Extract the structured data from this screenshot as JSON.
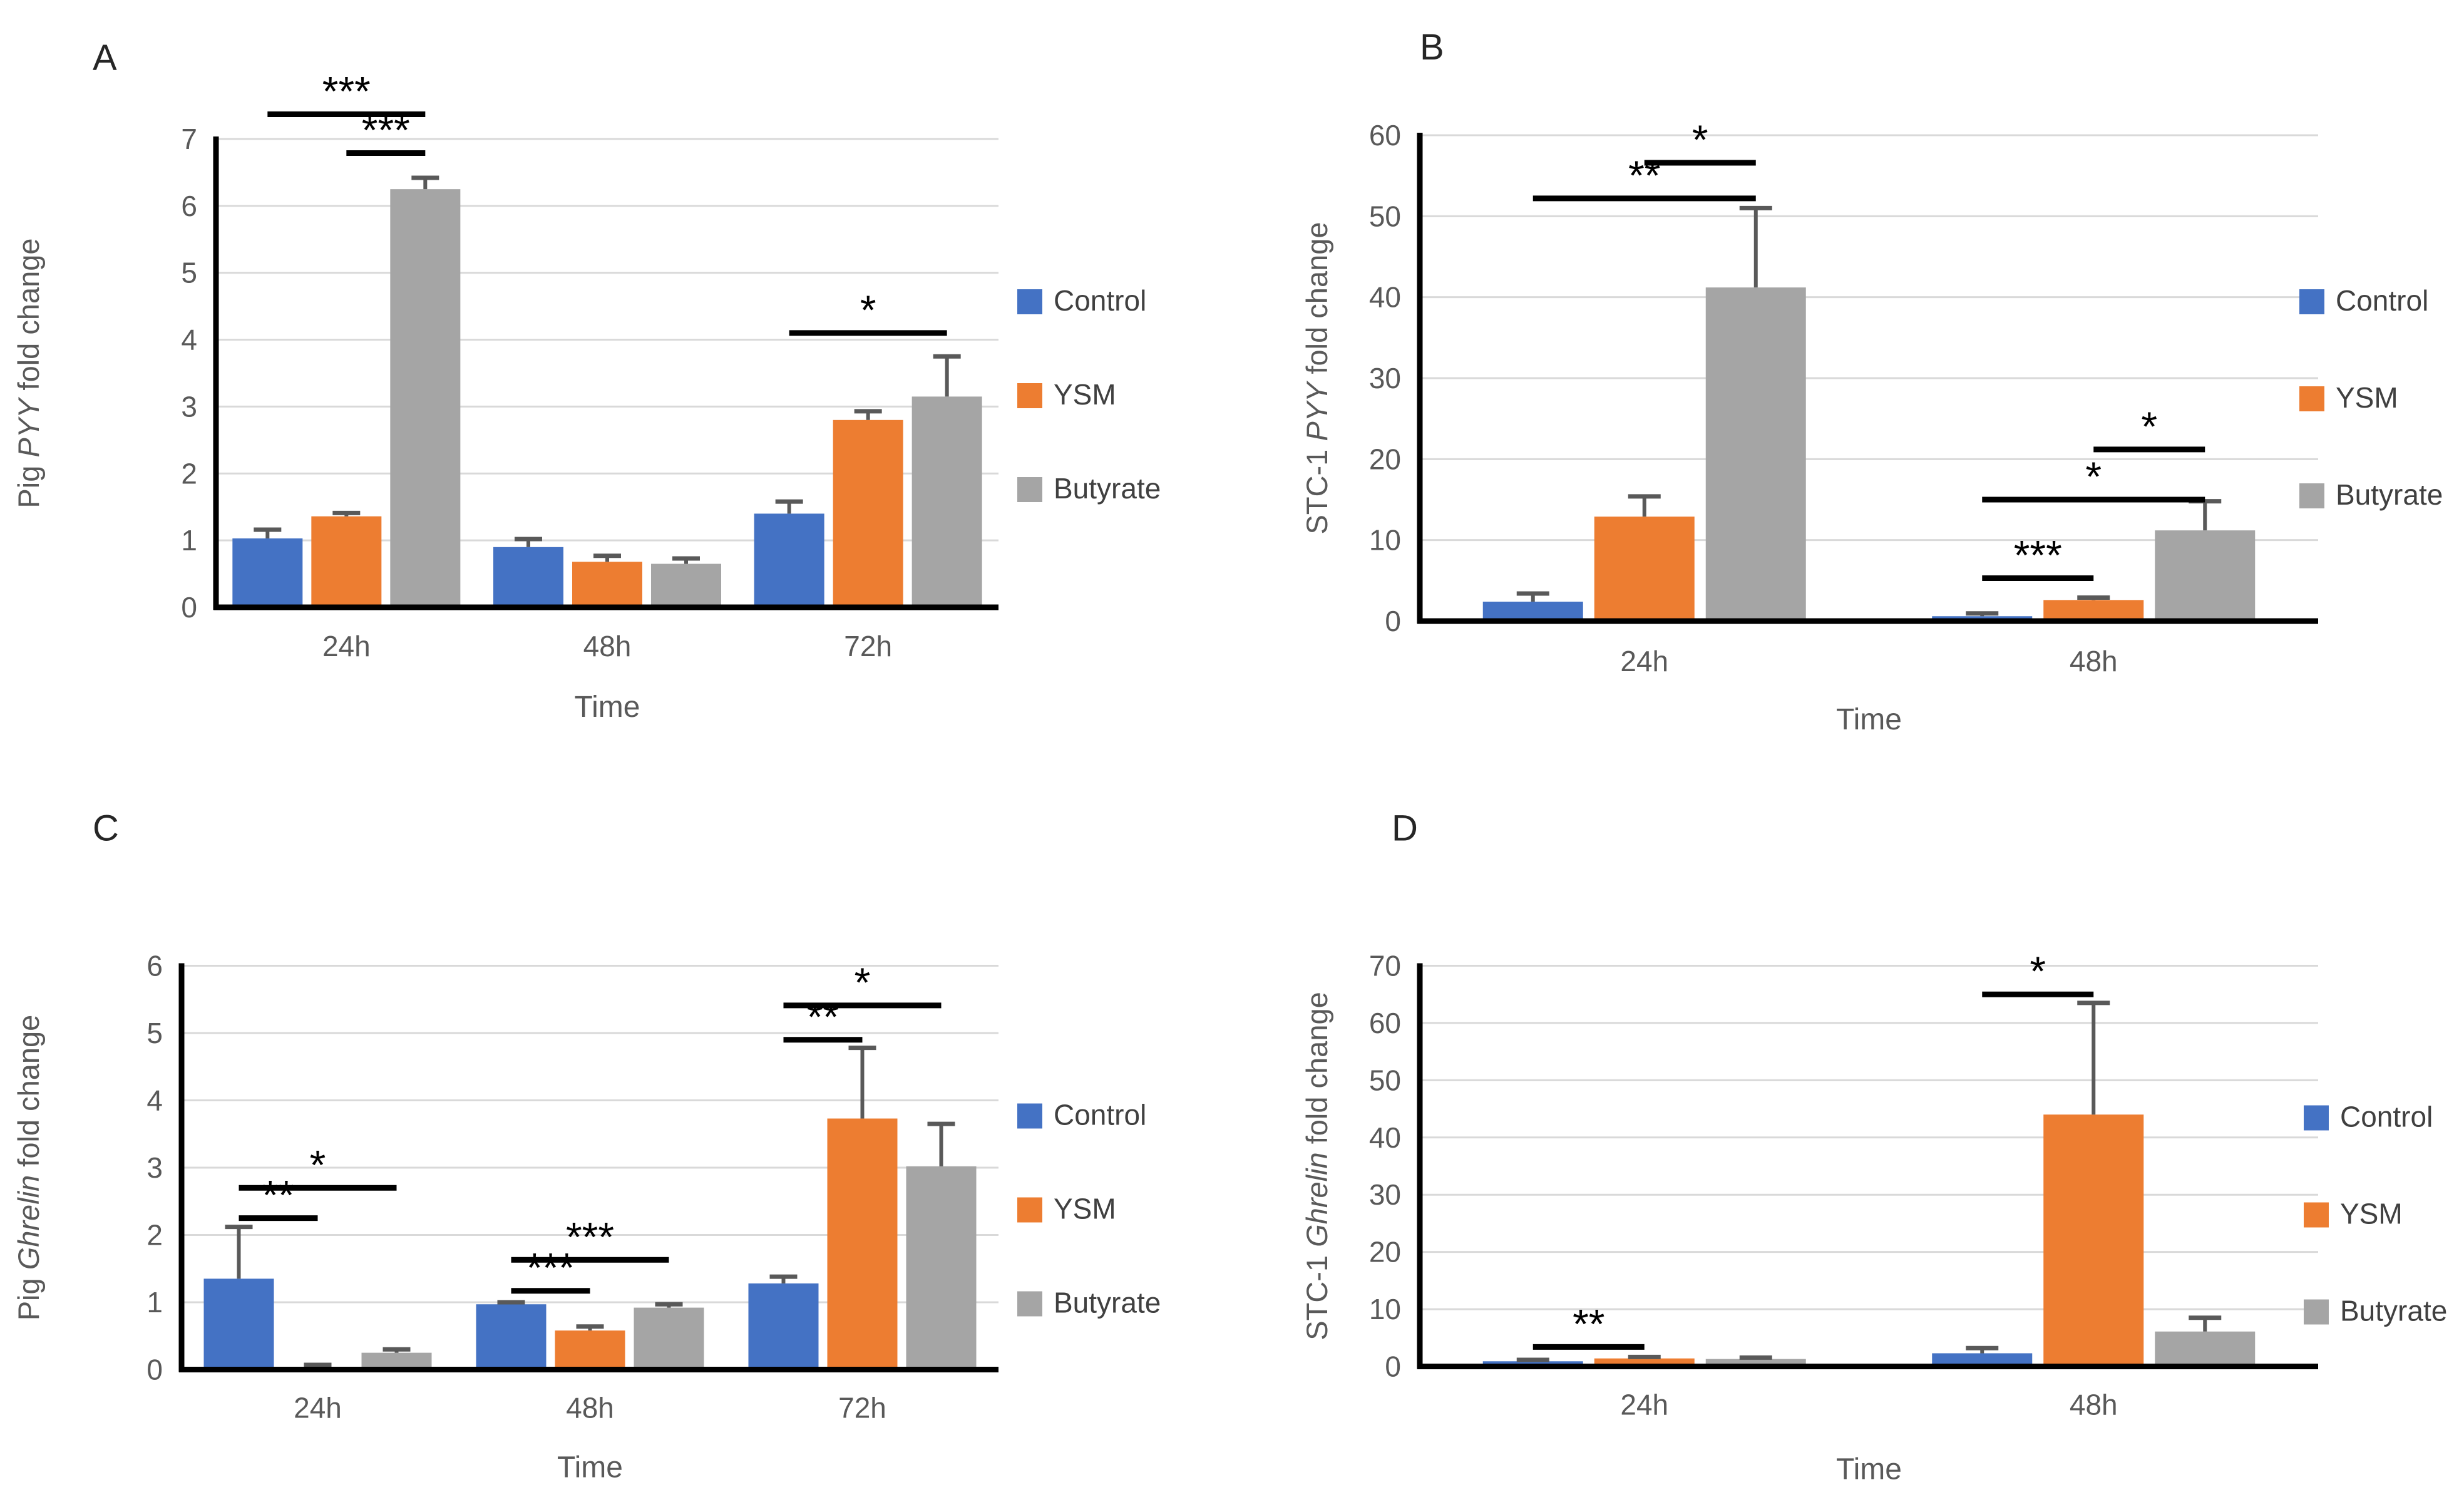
{
  "figure": {
    "background": "#ffffff",
    "x_axis_label": "Time",
    "legend_labels": [
      "Control",
      "YSM",
      "Butyrate"
    ],
    "series_colors": {
      "Control": "#4472C4",
      "YSM": "#ED7D31",
      "Butyrate": "#A5A5A5"
    },
    "grid_color": "#D9D9D9",
    "axis_color": "#000000",
    "tick_text_color": "#595959",
    "legend_text_color": "#404040",
    "error_bar_color": "#595959",
    "significance_color": "#000000"
  },
  "chart_data": [
    {
      "panel_label": "A",
      "type": "bar",
      "title_prefix": "Pig ",
      "title_italic": "PYY",
      "title_suffix": " fold change",
      "xlabel": "Time",
      "categories": [
        "24h",
        "48h",
        "72h"
      ],
      "series": [
        {
          "name": "Control",
          "color": "#4472C4",
          "values": [
            1.03,
            0.9,
            1.4
          ],
          "errors": [
            0.13,
            0.12,
            0.18
          ]
        },
        {
          "name": "YSM",
          "color": "#ED7D31",
          "values": [
            1.36,
            0.68,
            2.8
          ],
          "errors": [
            0.05,
            0.09,
            0.13
          ]
        },
        {
          "name": "Butyrate",
          "color": "#A5A5A5",
          "values": [
            6.25,
            0.65,
            3.15
          ],
          "errors": [
            0.17,
            0.08,
            0.6
          ]
        }
      ],
      "ylim": [
        0,
        7
      ],
      "ytick_step": 1,
      "grid": true,
      "legend_position": "right",
      "legend": [
        "Control",
        "YSM",
        "Butyrate"
      ],
      "significance": [
        {
          "group": 0,
          "from": 0,
          "to": 2,
          "y": 7.37,
          "label": "***"
        },
        {
          "group": 0,
          "from": 1,
          "to": 2,
          "y": 6.79,
          "label": "***"
        },
        {
          "group": 2,
          "from": 0,
          "to": 2,
          "y": 4.1,
          "label": "*"
        }
      ]
    },
    {
      "panel_label": "B",
      "type": "bar",
      "title_prefix": "STC-1 ",
      "title_italic": "PYY",
      "title_suffix": " fold change",
      "xlabel": "Time",
      "categories": [
        "24h",
        "48h"
      ],
      "series": [
        {
          "name": "Control",
          "color": "#4472C4",
          "values": [
            2.4,
            0.6
          ],
          "errors": [
            1.0,
            0.35
          ]
        },
        {
          "name": "YSM",
          "color": "#ED7D31",
          "values": [
            12.9,
            2.6
          ],
          "errors": [
            2.5,
            0.3
          ]
        },
        {
          "name": "Butyrate",
          "color": "#A5A5A5",
          "values": [
            41.2,
            11.2
          ],
          "errors": [
            9.8,
            3.6
          ]
        }
      ],
      "ylim": [
        0,
        60
      ],
      "ytick_step": 10,
      "grid": true,
      "legend_position": "right",
      "legend": [
        "Control",
        "YSM",
        "Butyrate"
      ],
      "significance": [
        {
          "group": 0,
          "from": 1,
          "to": 2,
          "y": 56.6,
          "label": "*"
        },
        {
          "group": 0,
          "from": 0,
          "to": 2,
          "y": 52.2,
          "label": "**"
        },
        {
          "group": 1,
          "from": 1,
          "to": 2,
          "y": 21.2,
          "label": "*"
        },
        {
          "group": 1,
          "from": 0,
          "to": 2,
          "y": 15.0,
          "label": "*"
        },
        {
          "group": 1,
          "from": 0,
          "to": 1,
          "y": 5.3,
          "label": "***"
        }
      ]
    },
    {
      "panel_label": "C",
      "type": "bar",
      "title_prefix": "Pig ",
      "title_italic": "Ghrelin",
      "title_suffix": " fold change",
      "xlabel": "Time",
      "categories": [
        "24h",
        "48h",
        "72h"
      ],
      "series": [
        {
          "name": "Control",
          "color": "#4472C4",
          "values": [
            1.35,
            0.97,
            1.28
          ],
          "errors": [
            0.77,
            0.03,
            0.1
          ]
        },
        {
          "name": "YSM",
          "color": "#ED7D31",
          "values": [
            0.04,
            0.58,
            3.73
          ],
          "errors": [
            0.03,
            0.06,
            1.05
          ]
        },
        {
          "name": "Butyrate",
          "color": "#A5A5A5",
          "values": [
            0.25,
            0.92,
            3.02
          ],
          "errors": [
            0.05,
            0.05,
            0.63
          ]
        }
      ],
      "ylim": [
        0,
        6
      ],
      "ytick_step": 1,
      "grid": true,
      "legend_position": "right",
      "legend": [
        "Control",
        "YSM",
        "Butyrate"
      ],
      "significance": [
        {
          "group": 0,
          "from": 0,
          "to": 2,
          "y": 2.7,
          "label": "*"
        },
        {
          "group": 0,
          "from": 0,
          "to": 1,
          "y": 2.25,
          "label": "**"
        },
        {
          "group": 1,
          "from": 0,
          "to": 2,
          "y": 1.63,
          "label": "***"
        },
        {
          "group": 1,
          "from": 0,
          "to": 1,
          "y": 1.17,
          "label": "***"
        },
        {
          "group": 2,
          "from": 0,
          "to": 2,
          "y": 5.41,
          "label": "*"
        },
        {
          "group": 2,
          "from": 0,
          "to": 1,
          "y": 4.9,
          "label": "**"
        }
      ]
    },
    {
      "panel_label": "D",
      "type": "bar",
      "title_prefix": "STC-1 ",
      "title_italic": "Ghrelin",
      "title_suffix": " fold change",
      "xlabel": "Time",
      "categories": [
        "24h",
        "48h"
      ],
      "series": [
        {
          "name": "Control",
          "color": "#4472C4",
          "values": [
            0.9,
            2.3
          ],
          "errors": [
            0.25,
            0.9
          ]
        },
        {
          "name": "YSM",
          "color": "#ED7D31",
          "values": [
            1.4,
            44.0
          ],
          "errors": [
            0.25,
            19.5
          ]
        },
        {
          "name": "Butyrate",
          "color": "#A5A5A5",
          "values": [
            1.3,
            6.1
          ],
          "errors": [
            0.25,
            2.4
          ]
        }
      ],
      "ylim": [
        0,
        70
      ],
      "ytick_step": 10,
      "grid": true,
      "legend_position": "right",
      "legend": [
        "Control",
        "YSM",
        "Butyrate"
      ],
      "significance": [
        {
          "group": 0,
          "from": 0,
          "to": 1,
          "y": 3.4,
          "label": "**"
        },
        {
          "group": 1,
          "from": 0,
          "to": 1,
          "y": 65.0,
          "label": "*"
        }
      ]
    }
  ]
}
